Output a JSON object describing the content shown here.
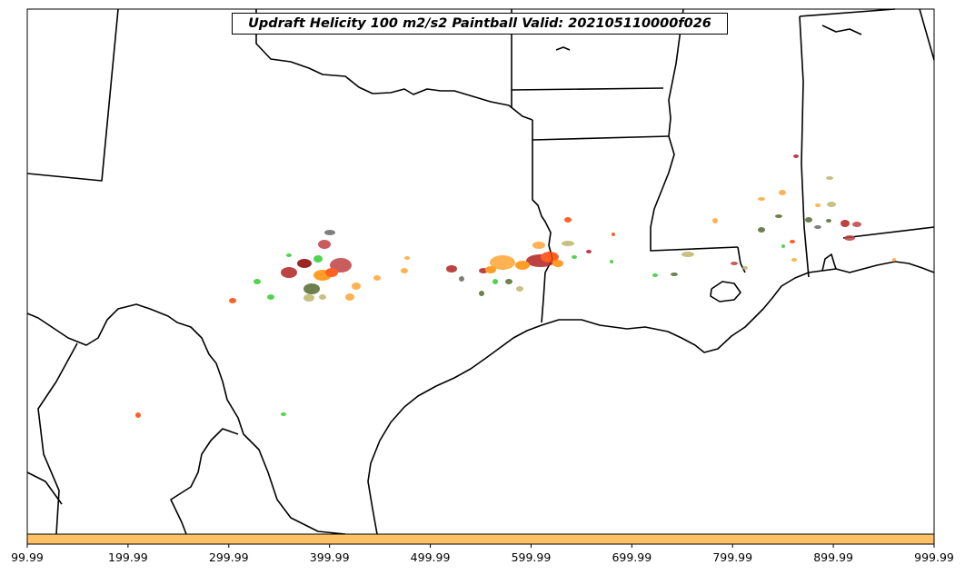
{
  "title": "Updraft Helicity 100 m2/s2 Paintball Valid: 202105110000f026",
  "colorbar": {
    "color": "#FFC166",
    "ticks": [
      "99.99",
      "199.99",
      "299.99",
      "399.99",
      "499.99",
      "599.99",
      "699.99",
      "799.99",
      "899.99",
      "999.99"
    ]
  },
  "map": {
    "region": "Southern Plains / Gulf Coast",
    "land_color": "#ffffff",
    "border_color": "#000000"
  },
  "paintball_colors": [
    "#b22222",
    "#ff8c00",
    "#ffa533",
    "#556b2f",
    "#9acd32",
    "#32cd32",
    "#e8a33a",
    "#8b0000",
    "#ff4500",
    "#696969",
    "#bdb76b",
    "#c04040"
  ]
}
